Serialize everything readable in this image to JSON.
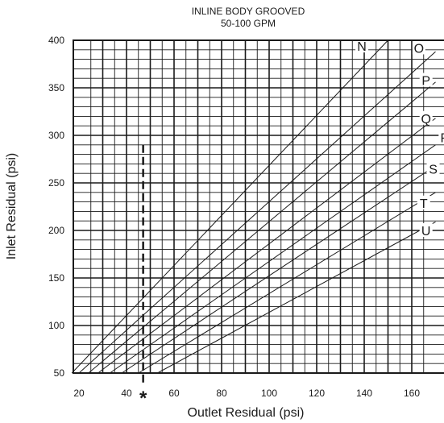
{
  "chart_data": {
    "type": "line",
    "title": "INLINE BODY GROOVED",
    "subtitle": "50-100 GPM",
    "xlabel": "Outlet Residual (psi)",
    "ylabel": "Inlet Residual (psi)",
    "xlim": [
      17,
      170
    ],
    "ylim": [
      50,
      400
    ],
    "x_ticks": [
      20,
      40,
      60,
      80,
      100,
      120,
      140,
      160
    ],
    "y_ticks": [
      50,
      100,
      150,
      200,
      250,
      300,
      350,
      400
    ],
    "grid": true,
    "marker": {
      "label": "*",
      "x": 47,
      "y_top": 290
    },
    "series": [
      {
        "name": "N",
        "x": [
          17,
          150
        ],
        "y": [
          50,
          400
        ],
        "label_at": [
          139,
          394
        ]
      },
      {
        "name": "O",
        "x": [
          20,
          170
        ],
        "y": [
          50,
          388
        ],
        "label_at": [
          163,
          392
        ]
      },
      {
        "name": "P",
        "x": [
          24,
          170
        ],
        "y": [
          50,
          356
        ],
        "label_at": [
          166,
          358
        ]
      },
      {
        "name": "Q",
        "x": [
          28,
          170
        ],
        "y": [
          50,
          318
        ],
        "label_at": [
          166,
          318
        ]
      },
      {
        "name": "R",
        "x": [
          33,
          170
        ],
        "y": [
          50,
          290
        ],
        "label_at": [
          174,
          298
        ]
      },
      {
        "name": "S",
        "x": [
          38,
          170
        ],
        "y": [
          50,
          268
        ],
        "label_at": [
          169,
          265
        ]
      },
      {
        "name": "T",
        "x": [
          45,
          170
        ],
        "y": [
          50,
          240
        ],
        "label_at": [
          165,
          229
        ]
      },
      {
        "name": "U",
        "x": [
          53,
          170
        ],
        "y": [
          50,
          209
        ],
        "label_at": [
          166,
          200
        ]
      }
    ]
  }
}
